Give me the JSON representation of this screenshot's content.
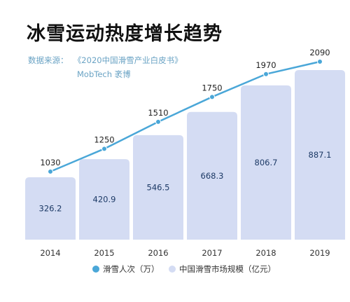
{
  "title": "冰雪运动热度增长趋势",
  "source_label": "数据来源：",
  "source_text": "《2020中国滑雪产业白皮书》",
  "source_text2": "MobTech 袤博",
  "colors": {
    "line": "#4aa7d8",
    "bar": "#d4dcf3",
    "axis_text": "#333333",
    "value_text": "#1d3a66"
  },
  "chart_data": {
    "type": "bar+line",
    "categories": [
      "2014",
      "2015",
      "2016",
      "2017",
      "2018",
      "2019"
    ],
    "series": [
      {
        "name": "滑雪人次（万）",
        "type": "line",
        "values": [
          1030,
          1250,
          1510,
          1750,
          1970,
          2090
        ]
      },
      {
        "name": "中国滑雪市场规模（亿元）",
        "type": "bar",
        "values": [
          326.2,
          420.9,
          546.5,
          668.3,
          806.7,
          887.1
        ]
      }
    ],
    "legend_position": "bottom",
    "grid": false
  }
}
